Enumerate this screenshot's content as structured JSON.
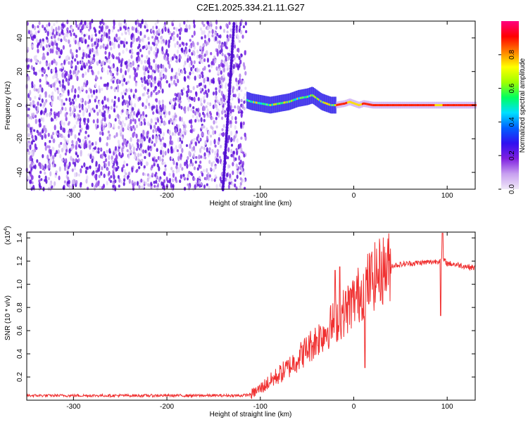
{
  "title": "C2E1.2025.334.21.11.G27",
  "chart_data": [
    {
      "type": "heatmap",
      "xlabel": "Height of straight line (km)",
      "ylabel": "Frequency (Hz)",
      "xlim": [
        -350,
        130
      ],
      "ylim": [
        -50,
        50
      ],
      "xticks": [
        "-300",
        "-200",
        "-100",
        "0",
        "100"
      ],
      "yticks": [
        "-40",
        "-20",
        "0",
        "20",
        "40"
      ],
      "colorbar": {
        "label": "Normalized spectral amplitude",
        "range": [
          0,
          1
        ],
        "ticks": [
          "0.0",
          "0.2",
          "0.4",
          "0.6",
          "0.8"
        ],
        "colors": [
          "#f0e8f8",
          "#c8a0f0",
          "#8020e0",
          "#3010f0",
          "#0060ff",
          "#00e0ff",
          "#00ff60",
          "#a0ff00",
          "#ffff00",
          "#ff8000",
          "#ff0000",
          "#ff0080"
        ]
      },
      "noise_region_x": [
        -350,
        -115
      ],
      "signal_track": {
        "x": [
          -115,
          -110,
          -100,
          -90,
          -80,
          -70,
          -60,
          -50,
          -45,
          -40,
          -35,
          -30,
          -25,
          -20,
          -10,
          -5,
          0,
          5,
          10,
          20,
          50,
          80,
          90,
          100,
          130
        ],
        "y": [
          3,
          2,
          1,
          0,
          1,
          2,
          4,
          5,
          6,
          4,
          2,
          1,
          0,
          0,
          1,
          2,
          1,
          0,
          1,
          0,
          0,
          0,
          0,
          0,
          0
        ]
      }
    },
    {
      "type": "line",
      "xlabel": "Height of straight line (km)",
      "ylabel": "SNR (10 * v/v)",
      "scale_label": "(x10",
      "scale_exp": "4",
      "xlim": [
        -350,
        130
      ],
      "ylim": [
        0,
        1.45
      ],
      "xticks": [
        "-300",
        "-200",
        "-100",
        "0",
        "100"
      ],
      "yticks": [
        "0.2",
        "0.4",
        "0.6",
        "0.8",
        "1.0",
        "1.2",
        "1.4"
      ],
      "color": "#f03030",
      "envelope": {
        "x": [
          -350,
          -120,
          -110,
          -100,
          -90,
          -80,
          -70,
          -60,
          -50,
          -40,
          -30,
          -20,
          -10,
          0,
          10,
          20,
          30,
          40,
          60,
          80,
          90,
          95,
          100,
          110,
          130
        ],
        "y": [
          0.04,
          0.04,
          0.05,
          0.1,
          0.16,
          0.22,
          0.28,
          0.36,
          0.44,
          0.52,
          0.6,
          0.68,
          0.76,
          0.86,
          0.96,
          1.05,
          1.12,
          1.16,
          1.18,
          1.19,
          1.2,
          1.22,
          1.18,
          1.17,
          1.14
        ]
      },
      "spikes": [
        {
          "x": -20,
          "y": 1.12
        },
        {
          "x": -15,
          "y": 1.15
        },
        {
          "x": 12,
          "y": 0.28
        },
        {
          "x": 95,
          "y": 1.44
        },
        {
          "x": 93,
          "y": 0.73
        }
      ]
    }
  ]
}
